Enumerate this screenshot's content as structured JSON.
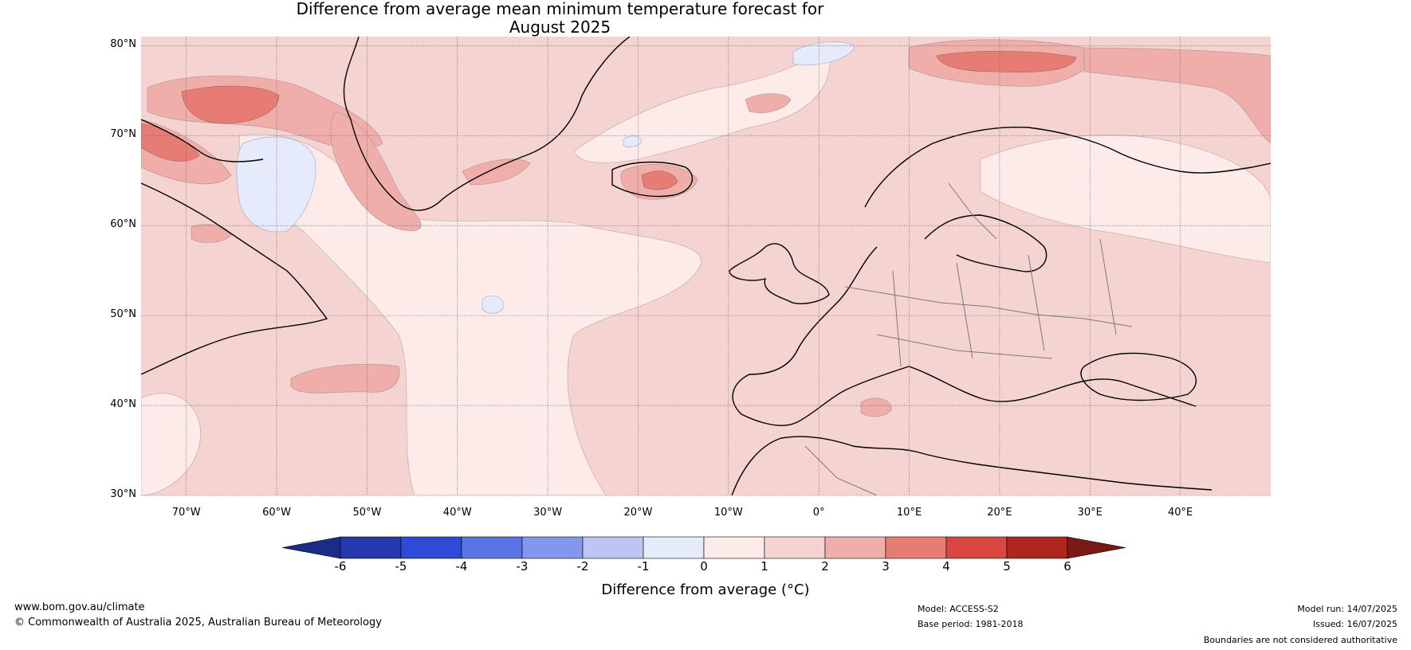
{
  "title_line1": "Difference from average mean minimum temperature forecast for",
  "title_line2": "August 2025",
  "lat_labels": [
    "80°N",
    "70°N",
    "60°N",
    "50°N",
    "40°N",
    "30°N"
  ],
  "lon_labels": [
    "70°W",
    "60°W",
    "50°W",
    "40°W",
    "30°W",
    "20°W",
    "10°W",
    "0°",
    "10°E",
    "20°E",
    "30°E",
    "40°E"
  ],
  "colorbar": {
    "ticks": [
      "-6",
      "-5",
      "-4",
      "-3",
      "-2",
      "-1",
      "0",
      "1",
      "2",
      "3",
      "4",
      "5",
      "6"
    ],
    "colors": [
      "#1b2c87",
      "#2637b0",
      "#2d4ad8",
      "#5a73e6",
      "#8597ec",
      "#bcc6f3",
      "#e6ebfb",
      "#fcebe9",
      "#f5d3d1",
      "#efaeaa",
      "#e67c74",
      "#d9463f",
      "#b0261f",
      "#7a1a16"
    ],
    "label": "Difference from average (°C)"
  },
  "footer": {
    "website": "www.bom.gov.au/climate",
    "copyright": "© Commonwealth of Australia 2025, Australian Bureau of Meteorology",
    "model": "Model: ACCESS-S2",
    "base_period": "Base period: 1981-2018",
    "model_run": "Model run: 14/07/2025",
    "issued": "Issued: 16/07/2025",
    "disclaimer": "Boundaries are not considered authoritative"
  }
}
